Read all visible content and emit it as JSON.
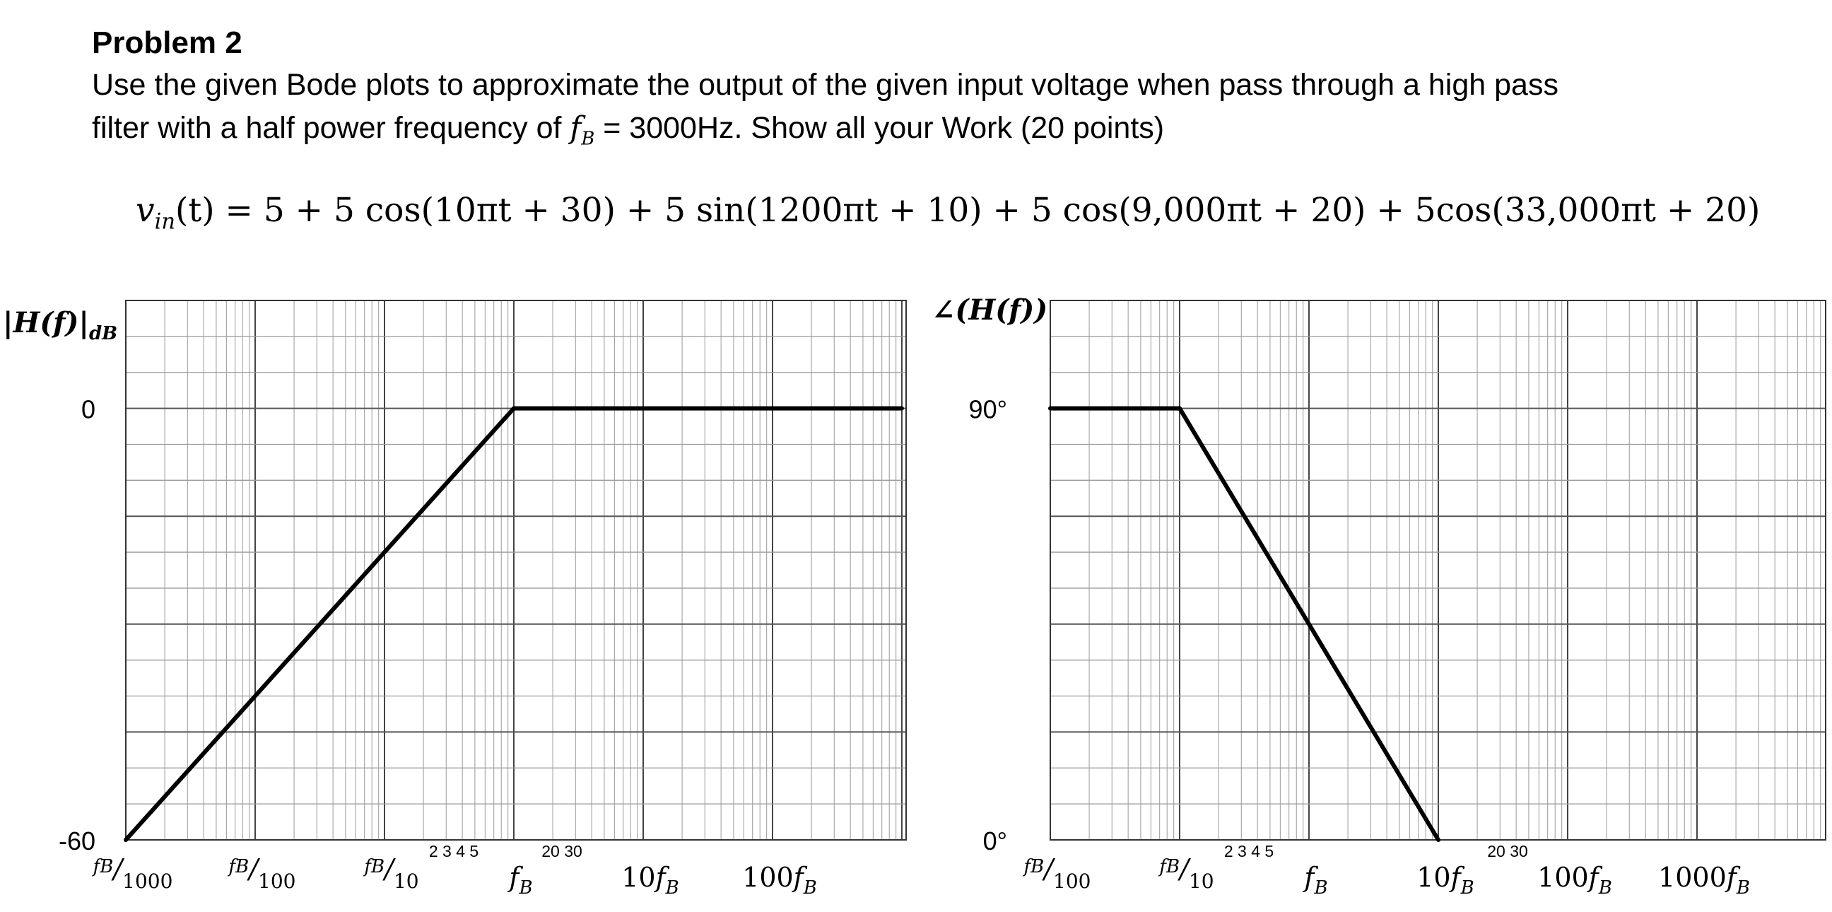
{
  "problem": {
    "title": "Problem 2",
    "line1": "Use the given Bode plots to approximate the output of the given input voltage when pass through a high  pass",
    "line2_pre": "filter with a half power frequency of ",
    "fb_symbol": "f",
    "fb_sub": "B",
    "line2_post": " = 3000Hz. Show all your Work (20 points)"
  },
  "equation": {
    "lhs_var": "v",
    "lhs_sub": "in",
    "lhs_arg": "(t)",
    "rhs": " = 5 + 5 cos(10πt + 30) + 5 sin(1200πt + 10) + 5 cos(9,000πt + 20) + 5cos(33,000πt + 20)"
  },
  "chart_data": [
    {
      "type": "line",
      "ylabel": "|H(f)|dB",
      "y_ticks": [
        "0",
        "-60"
      ],
      "x_ticks": [
        "fB/1000",
        "fB/100",
        "fB/10",
        "fB",
        "10fB",
        "100fB"
      ],
      "minor_tick_labels": [
        "2 3 4 5",
        "20  30"
      ],
      "xscale": "log",
      "ylim": [
        -60,
        15
      ],
      "series": [
        {
          "x": [
            "fB/1000",
            "fB"
          ],
          "y": [
            -60,
            0
          ]
        },
        {
          "x": [
            "fB",
            "1000fB"
          ],
          "y": [
            0,
            0
          ]
        }
      ]
    },
    {
      "type": "line",
      "ylabel": "∠(H(f))",
      "y_ticks": [
        "90°",
        "0°"
      ],
      "x_ticks": [
        "fB/100",
        "fB/10",
        "fB",
        "10fB",
        "100fB",
        "1000fB"
      ],
      "minor_tick_labels": [
        "2 3 4 5",
        "20  30"
      ],
      "xscale": "log",
      "ylim": [
        0,
        112.5
      ],
      "series": [
        {
          "x": [
            "fB/100",
            "fB/10"
          ],
          "y": [
            90,
            90
          ]
        },
        {
          "x": [
            "fB/10",
            "10fB"
          ],
          "y": [
            90,
            0
          ]
        }
      ]
    }
  ]
}
